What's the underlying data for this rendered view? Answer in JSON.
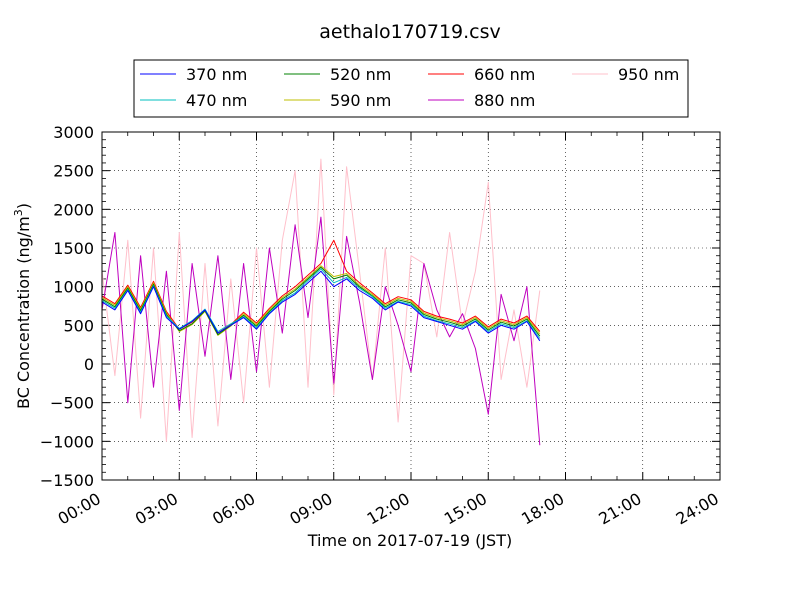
{
  "chart_data": {
    "type": "line",
    "title": "aethalo170719.csv",
    "xlabel": "Time on 2017-07-19 (JST)",
    "ylabel": "BC Concentration (ng/m³)",
    "ylabel_main": "BC Concentration (ng/m",
    "ylabel_sup": "3",
    "ylabel_end": ")",
    "xlim": [
      "00:00",
      "24:00"
    ],
    "ylim": [
      -1500,
      3000
    ],
    "x_ticks": [
      "00:00",
      "03:00",
      "06:00",
      "09:00",
      "12:00",
      "15:00",
      "18:00",
      "21:00",
      "24:00"
    ],
    "y_ticks": [
      "−1500",
      "−1000",
      "−500",
      "0",
      "500",
      "1000",
      "1500",
      "2000",
      "2500",
      "3000"
    ],
    "grid": true,
    "legend": "top-center",
    "series": [
      {
        "name": "370 nm",
        "color": "#0000ff",
        "times": [
          "00:00",
          "00:30",
          "01:00",
          "01:30",
          "02:00",
          "02:30",
          "03:00",
          "03:30",
          "04:00",
          "04:30",
          "05:00",
          "05:30",
          "06:00",
          "06:30",
          "07:00",
          "07:30",
          "08:00",
          "08:30",
          "09:00",
          "09:30",
          "10:00",
          "10:30",
          "11:00",
          "11:30",
          "12:00",
          "12:30",
          "13:00",
          "13:30",
          "14:00",
          "14:30",
          "15:00",
          "15:30",
          "16:00",
          "16:30",
          "17:00"
        ],
        "values": [
          800,
          700,
          950,
          650,
          1000,
          600,
          450,
          550,
          700,
          400,
          500,
          600,
          450,
          650,
          800,
          900,
          1050,
          1200,
          1000,
          1100,
          950,
          850,
          700,
          800,
          750,
          600,
          550,
          500,
          450,
          550,
          400,
          500,
          450,
          550,
          300
        ]
      },
      {
        "name": "470 nm",
        "color": "#00bfbf",
        "times": [
          "00:00",
          "00:30",
          "01:00",
          "01:30",
          "02:00",
          "02:30",
          "03:00",
          "03:30",
          "04:00",
          "04:30",
          "05:00",
          "05:30",
          "06:00",
          "06:30",
          "07:00",
          "07:30",
          "08:00",
          "08:30",
          "09:00",
          "09:30",
          "10:00",
          "10:30",
          "11:00",
          "11:30",
          "12:00",
          "12:30",
          "13:00",
          "13:30",
          "14:00",
          "14:30",
          "15:00",
          "15:30",
          "16:00",
          "16:30",
          "17:00"
        ],
        "values": [
          820,
          720,
          960,
          670,
          1010,
          620,
          460,
          560,
          710,
          420,
          520,
          610,
          470,
          660,
          820,
          920,
          1080,
          1230,
          1050,
          1120,
          980,
          870,
          720,
          810,
          770,
          620,
          560,
          520,
          470,
          560,
          420,
          520,
          470,
          560,
          330
        ]
      },
      {
        "name": "520 nm",
        "color": "#008000",
        "times": [
          "00:00",
          "00:30",
          "01:00",
          "01:30",
          "02:00",
          "02:30",
          "03:00",
          "03:30",
          "04:00",
          "04:30",
          "05:00",
          "05:30",
          "06:00",
          "06:30",
          "07:00",
          "07:30",
          "08:00",
          "08:30",
          "09:00",
          "09:30",
          "10:00",
          "10:30",
          "11:00",
          "11:30",
          "12:00",
          "12:30",
          "13:00",
          "13:30",
          "14:00",
          "14:30",
          "15:00",
          "15:30",
          "16:00",
          "16:30",
          "17:00"
        ],
        "values": [
          840,
          740,
          980,
          690,
          1030,
          640,
          430,
          520,
          690,
          380,
          500,
          630,
          490,
          680,
          840,
          950,
          1100,
          1250,
          1100,
          1150,
          1000,
          880,
          740,
          830,
          790,
          640,
          580,
          540,
          490,
          580,
          440,
          540,
          490,
          580,
          360
        ]
      },
      {
        "name": "590 nm",
        "color": "#bfbf00",
        "times": [
          "00:00",
          "00:30",
          "01:00",
          "01:30",
          "02:00",
          "02:30",
          "03:00",
          "03:30",
          "04:00",
          "04:30",
          "05:00",
          "05:30",
          "06:00",
          "06:30",
          "07:00",
          "07:30",
          "08:00",
          "08:30",
          "09:00",
          "09:30",
          "10:00",
          "10:30",
          "11:00",
          "11:30",
          "12:00",
          "12:30",
          "13:00",
          "13:30",
          "14:00",
          "14:30",
          "15:00",
          "15:30",
          "16:00",
          "16:30",
          "17:00"
        ],
        "values": [
          860,
          760,
          1000,
          710,
          1050,
          660,
          420,
          510,
          680,
          370,
          490,
          650,
          510,
          700,
          860,
          970,
          1120,
          1270,
          1130,
          1170,
          1020,
          900,
          760,
          850,
          810,
          660,
          600,
          560,
          510,
          600,
          460,
          560,
          510,
          600,
          390
        ]
      },
      {
        "name": "660 nm",
        "color": "#ff0000",
        "times": [
          "00:00",
          "00:30",
          "01:00",
          "01:30",
          "02:00",
          "02:30",
          "03:00",
          "03:30",
          "04:00",
          "04:30",
          "05:00",
          "05:30",
          "06:00",
          "06:30",
          "07:00",
          "07:30",
          "08:00",
          "08:30",
          "09:00",
          "09:30",
          "10:00",
          "10:30",
          "11:00",
          "11:30",
          "12:00",
          "12:30",
          "13:00",
          "13:30",
          "14:00",
          "14:30",
          "15:00",
          "15:30",
          "16:00",
          "16:30",
          "17:00"
        ],
        "values": [
          880,
          780,
          1020,
          730,
          1070,
          680,
          450,
          540,
          700,
          400,
          510,
          670,
          530,
          720,
          880,
          1000,
          1150,
          1300,
          1600,
          1200,
          1050,
          920,
          780,
          870,
          830,
          680,
          620,
          580,
          530,
          620,
          480,
          580,
          530,
          620,
          420
        ]
      },
      {
        "name": "880 nm",
        "color": "#bf00bf",
        "times": [
          "00:00",
          "00:30",
          "01:00",
          "01:30",
          "02:00",
          "02:30",
          "03:00",
          "03:30",
          "04:00",
          "04:30",
          "05:00",
          "05:30",
          "06:00",
          "06:30",
          "07:00",
          "07:30",
          "08:00",
          "08:30",
          "09:00",
          "09:30",
          "10:00",
          "10:30",
          "11:00",
          "11:30",
          "12:00",
          "12:30",
          "13:00",
          "13:30",
          "14:00",
          "14:30",
          "15:00",
          "15:30",
          "16:00",
          "16:30",
          "17:00"
        ],
        "values": [
          700,
          1700,
          -500,
          1400,
          -300,
          1200,
          -600,
          1300,
          100,
          1400,
          -200,
          1300,
          -100,
          1500,
          400,
          1800,
          600,
          1900,
          -250,
          1650,
          800,
          -200,
          1000,
          500,
          -100,
          1300,
          700,
          350,
          650,
          200,
          -650,
          900,
          300,
          1000,
          -1050
        ]
      },
      {
        "name": "950 nm",
        "color": "#ffc0cb",
        "times": [
          "00:00",
          "00:30",
          "01:00",
          "01:30",
          "02:00",
          "02:30",
          "03:00",
          "03:30",
          "04:00",
          "04:30",
          "05:00",
          "05:30",
          "06:00",
          "06:30",
          "07:00",
          "07:30",
          "08:00",
          "08:30",
          "09:00",
          "09:30",
          "10:00",
          "10:30",
          "11:00",
          "11:30",
          "12:00",
          "12:30",
          "13:00",
          "13:30",
          "14:00",
          "14:30",
          "15:00",
          "15:30",
          "16:00",
          "16:30",
          "17:00"
        ],
        "values": [
          1200,
          -150,
          1600,
          -700,
          1500,
          -1000,
          1700,
          -950,
          1300,
          -800,
          1100,
          -500,
          1500,
          -300,
          1600,
          2500,
          -300,
          2650,
          -400,
          2550,
          1200,
          -200,
          1500,
          -750,
          1400,
          1300,
          350,
          1700,
          500,
          1200,
          2350,
          -200,
          700,
          -300,
          950
        ]
      }
    ]
  }
}
